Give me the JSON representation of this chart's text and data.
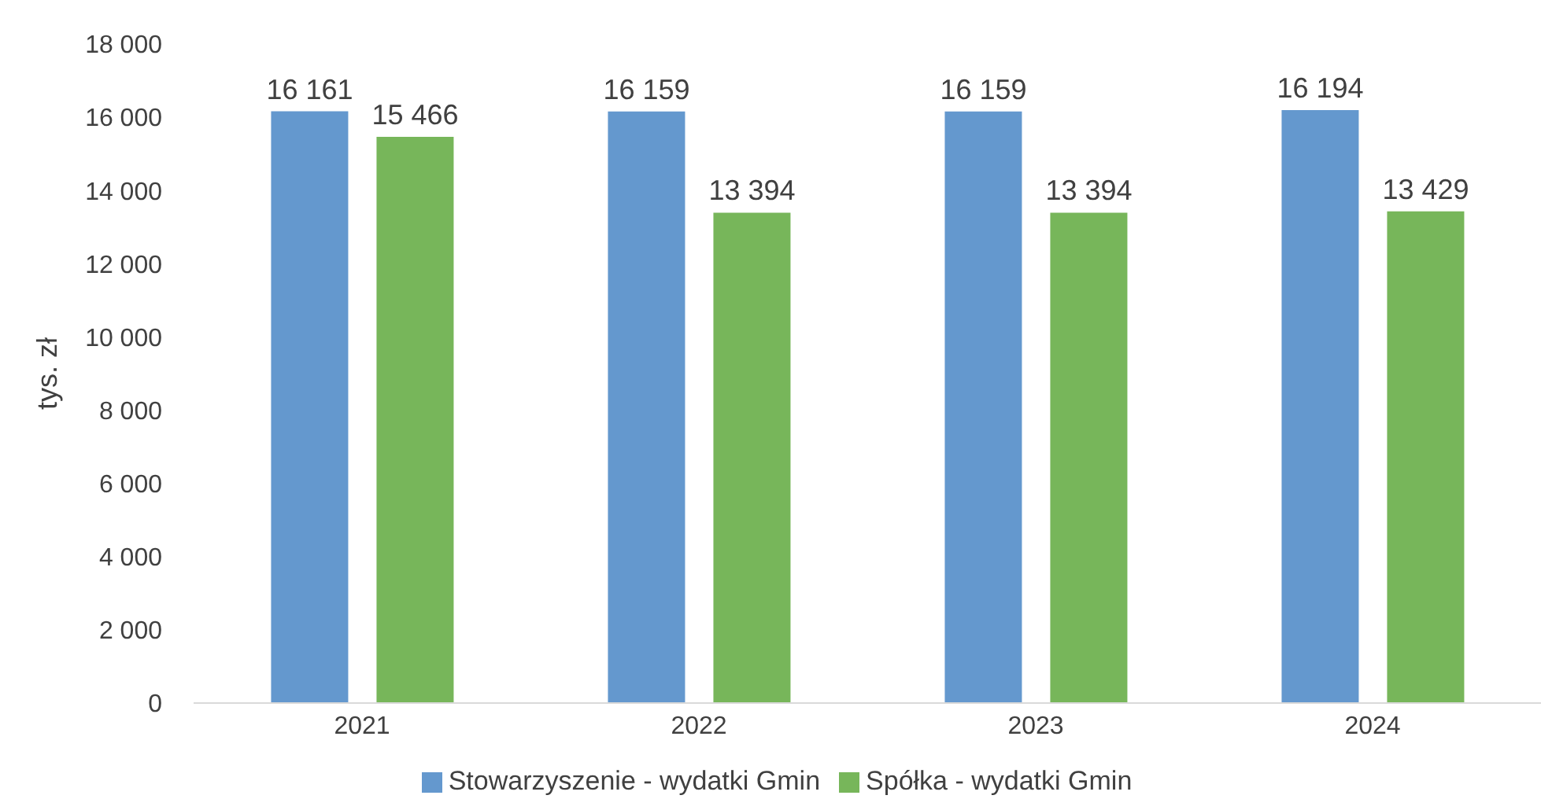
{
  "chart_data": {
    "type": "bar",
    "ylabel": "tys. zł",
    "categories": [
      "2021",
      "2022",
      "2023",
      "2024"
    ],
    "series": [
      {
        "name": "Stowarzyszenie - wydatki Gmin",
        "color": "#6498ce",
        "values": [
          16161,
          16159,
          16159,
          16194
        ],
        "value_labels": [
          "16 161",
          "16 159",
          "16 159",
          "16 194"
        ]
      },
      {
        "name": "Spółka - wydatki Gmin",
        "color": "#77b65a",
        "values": [
          15466,
          13394,
          13394,
          13429
        ],
        "value_labels": [
          "15 466",
          "13 394",
          "13 394",
          "13 429"
        ]
      }
    ],
    "ylim": [
      0,
      18000
    ],
    "yticks": [
      0,
      {
        "value": 2000,
        "label": "2 000"
      },
      {
        "value": 4000,
        "label": "4 000"
      },
      {
        "value": 6000,
        "label": "6 000"
      },
      {
        "value": 8000,
        "label": "8 000"
      },
      {
        "value": 10000,
        "label": "10 000"
      },
      {
        "value": 12000,
        "label": "12 000"
      },
      {
        "value": 14000,
        "label": "14 000"
      },
      {
        "value": 16000,
        "label": "16 000"
      },
      {
        "value": 18000,
        "label": "18 000"
      }
    ],
    "grid": false,
    "legend": "bottom"
  }
}
